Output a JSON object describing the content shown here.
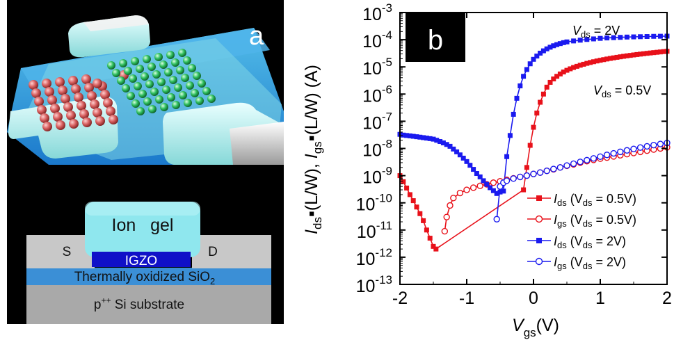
{
  "panel_a": {
    "label": "a",
    "cross_section": {
      "ion_gel_label": "Ion   gel",
      "source_label": "S",
      "drain_label": "D",
      "channel_label": "IGZO",
      "oxide_label_main": "Thermally oxidized SiO",
      "oxide_label_sub": "2",
      "substrate_label_p": "p",
      "substrate_label_sup": "++",
      "substrate_label_rest": " Si substrate"
    }
  },
  "panel_b": {
    "label": "b",
    "annotations": {
      "vds_2v_v": "V",
      "vds_2v_sub": "ds",
      "vds_2v_val": " = 2V",
      "vds_05v_v": "V",
      "vds_05v_sub": "ds",
      "vds_05v_val": " = 0.5V"
    },
    "y_axis_label": {
      "i1": "I",
      "s1": "ds",
      "m1": "▪(L/W), ",
      "i2": "I",
      "s2": "gs",
      "m2": "▪(L/W) (A)"
    },
    "x_axis_label": {
      "v": "V",
      "sub": "gs",
      "unit": "(V)"
    },
    "legend": [
      {
        "i": "I",
        "sub": "ds",
        "mid": " (V",
        "sub2": "ds",
        "end": " = 0.5V)"
      },
      {
        "i": "I",
        "sub": "gs",
        "mid": " (V",
        "sub2": "ds",
        "end": " = 0.5V)"
      },
      {
        "i": "I",
        "sub": "ds",
        "mid": " (V",
        "sub2": "ds",
        "end": " = 2V)"
      },
      {
        "i": "I",
        "sub": "gs",
        "mid": " (V",
        "sub2": "ds",
        "end": " = 2V)"
      }
    ]
  },
  "colors": {
    "red": "#e8111a",
    "blue": "#1a1aef",
    "channel": "#1010c8",
    "gel": "#8fe7ee",
    "oxide": "#3b8fd6"
  },
  "chart_data": {
    "type": "line",
    "xlabel": "Vgs(V)",
    "ylabel": "Ids▪(L/W), Igs▪(L/W) (A)",
    "xlim": [
      -2,
      2
    ],
    "ylim": [
      1e-13,
      0.001
    ],
    "y_scale": "log",
    "x_ticks": [
      "-2",
      "-1",
      "0",
      "1",
      "2"
    ],
    "y_ticks": [
      {
        "base": "10",
        "exp": "-13"
      },
      {
        "base": "10",
        "exp": "-12"
      },
      {
        "base": "10",
        "exp": "-11"
      },
      {
        "base": "10",
        "exp": "-10"
      },
      {
        "base": "10",
        "exp": "-9"
      },
      {
        "base": "10",
        "exp": "-8"
      },
      {
        "base": "10",
        "exp": "-7"
      },
      {
        "base": "10",
        "exp": "-6"
      },
      {
        "base": "10",
        "exp": "-5"
      },
      {
        "base": "10",
        "exp": "-4"
      },
      {
        "base": "10",
        "exp": "-3"
      }
    ],
    "legend_position": "bottom-right",
    "series": [
      {
        "name": "Ids (Vds = 0.5V)",
        "color": "#e8111a",
        "marker": "square-filled",
        "x": [
          -2.0,
          -1.95,
          -1.9,
          -1.85,
          -1.8,
          -1.75,
          -1.7,
          -1.65,
          -1.6,
          -1.55,
          -1.5,
          -1.46,
          -0.15,
          -0.1,
          -0.05,
          0.0,
          0.05,
          0.1,
          0.15,
          0.2,
          0.25,
          0.3,
          0.35,
          0.4,
          0.45,
          0.5,
          0.55,
          0.6,
          0.65,
          0.7,
          0.75,
          0.8,
          0.85,
          0.9,
          0.95,
          1.0,
          1.05,
          1.1,
          1.15,
          1.2,
          1.25,
          1.3,
          1.35,
          1.4,
          1.45,
          1.5,
          1.55,
          1.6,
          1.65,
          1.7,
          1.75,
          1.8,
          1.85,
          1.9,
          1.95,
          2.0
        ],
        "y": [
          1e-09,
          6e-10,
          3.5e-10,
          2e-10,
          1.2e-10,
          7e-11,
          4e-11,
          2.2e-11,
          1e-11,
          5e-12,
          2.5e-12,
          2e-12,
          3e-10,
          2e-09,
          1.3e-08,
          6e-08,
          2e-07,
          5e-07,
          1e-06,
          1.8e-06,
          2.7e-06,
          3.6e-06,
          4.5e-06,
          5.5e-06,
          6.5e-06,
          7.5e-06,
          8.5e-06,
          9.5e-06,
          1.05e-05,
          1.15e-05,
          1.25e-05,
          1.35e-05,
          1.45e-05,
          1.55e-05,
          1.65e-05,
          1.75e-05,
          1.85e-05,
          1.95e-05,
          2.05e-05,
          2.15e-05,
          2.25e-05,
          2.35e-05,
          2.45e-05,
          2.55e-05,
          2.65e-05,
          2.75e-05,
          2.85e-05,
          2.95e-05,
          3.05e-05,
          3.15e-05,
          3.25e-05,
          3.35e-05,
          3.45e-05,
          3.55e-05,
          3.65e-05,
          3.75e-05
        ]
      },
      {
        "name": "Igs (Vds = 0.5V)",
        "color": "#e8111a",
        "marker": "circle-open",
        "x": [
          -1.33,
          -1.3,
          -1.25,
          -1.2,
          -1.1,
          -1.0,
          -0.9,
          -0.8,
          -0.7,
          -0.6,
          -0.5,
          -0.4,
          -0.3,
          -0.2,
          -0.1,
          0.0,
          0.1,
          0.2,
          0.3,
          0.4,
          0.5,
          0.6,
          0.7,
          0.8,
          0.9,
          1.0,
          1.1,
          1.2,
          1.3,
          1.4,
          1.5,
          1.6,
          1.7,
          1.8,
          1.9,
          2.0
        ],
        "y": [
          9e-12,
          3e-11,
          8e-11,
          1.5e-10,
          2.3e-10,
          3e-10,
          3.6e-10,
          4.2e-10,
          4.8e-10,
          5.5e-10,
          6.2e-10,
          7e-10,
          8e-10,
          9e-10,
          1e-09,
          1.15e-09,
          1.3e-09,
          1.5e-09,
          1.7e-09,
          2e-09,
          2.3e-09,
          2.6e-09,
          3e-09,
          3.4e-09,
          3.8e-09,
          4.2e-09,
          4.6e-09,
          5.1e-09,
          5.6e-09,
          6.2e-09,
          6.8e-09,
          7.5e-09,
          8.3e-09,
          9.1e-09,
          1e-08,
          1.1e-08
        ]
      },
      {
        "name": "Ids (Vds = 2V)",
        "color": "#1a1aef",
        "marker": "square-filled",
        "x": [
          -2.0,
          -1.95,
          -1.9,
          -1.85,
          -1.8,
          -1.75,
          -1.7,
          -1.65,
          -1.6,
          -1.55,
          -1.5,
          -1.45,
          -1.4,
          -1.35,
          -1.3,
          -1.25,
          -1.2,
          -1.15,
          -1.1,
          -1.05,
          -1.0,
          -0.95,
          -0.9,
          -0.85,
          -0.8,
          -0.75,
          -0.7,
          -0.65,
          -0.6,
          -0.55,
          -0.5,
          -0.45,
          -0.4,
          -0.35,
          -0.3,
          -0.25,
          -0.2,
          -0.15,
          -0.1,
          -0.05,
          0.0,
          0.05,
          0.1,
          0.15,
          0.2,
          0.25,
          0.3,
          0.35,
          0.4,
          0.45,
          0.5,
          0.6,
          0.7,
          0.8,
          0.9,
          1.0,
          1.1,
          1.2,
          1.3,
          1.4,
          1.5,
          1.6,
          1.7,
          1.8,
          1.9,
          2.0
        ],
        "y": [
          3.3e-08,
          3.1e-08,
          3e-08,
          2.9e-08,
          2.8e-08,
          2.7e-08,
          2.6e-08,
          2.5e-08,
          2.4e-08,
          2.3e-08,
          2.2e-08,
          2e-08,
          1.8e-08,
          1.6e-08,
          1.4e-08,
          1.2e-08,
          9.5e-09,
          7.5e-09,
          5.8e-09,
          4.4e-09,
          3.3e-09,
          2.4e-09,
          1.7e-09,
          1.2e-09,
          9e-10,
          6.5e-10,
          4.8e-10,
          3.6e-10,
          2.8e-10,
          2.2e-10,
          2.5e-10,
          2.7e-10,
          5e-09,
          3e-08,
          1.8e-07,
          7e-07,
          2e-06,
          4.5e-06,
          8e-06,
          1.3e-05,
          1.9e-05,
          2.5e-05,
          3.2e-05,
          3.9e-05,
          4.6e-05,
          5.3e-05,
          6e-05,
          6.6e-05,
          7.2e-05,
          7.8e-05,
          8.3e-05,
          9e-05,
          9.6e-05,
          0.000102,
          0.000107,
          0.000112,
          0.000116,
          0.000119,
          0.000122,
          0.000125,
          0.000127,
          0.000129,
          0.000131,
          0.000133,
          0.000134,
          0.000135
        ]
      },
      {
        "name": "Igs (Vds = 2V)",
        "color": "#1a1aef",
        "marker": "circle-open",
        "x": [
          -0.55,
          -0.5,
          -0.45,
          -0.4,
          -0.3,
          -0.2,
          -0.1,
          0.0,
          0.1,
          0.2,
          0.3,
          0.4,
          0.5,
          0.6,
          0.7,
          0.8,
          0.9,
          1.0,
          1.1,
          1.2,
          1.3,
          1.4,
          1.5,
          1.6,
          1.7,
          1.8,
          1.9,
          2.0
        ],
        "y": [
          2.5e-11,
          4e-10,
          5.5e-10,
          6.5e-10,
          7.8e-10,
          9e-10,
          1e-09,
          1.15e-09,
          1.3e-09,
          1.5e-09,
          1.75e-09,
          2e-09,
          2.35e-09,
          2.75e-09,
          3.2e-09,
          3.7e-09,
          4.3e-09,
          5e-09,
          5.8e-09,
          6.6e-09,
          7.5e-09,
          8.5e-09,
          9.6e-09,
          1.08e-08,
          1.2e-08,
          1.33e-08,
          1.46e-08,
          1.6e-08
        ]
      }
    ]
  }
}
